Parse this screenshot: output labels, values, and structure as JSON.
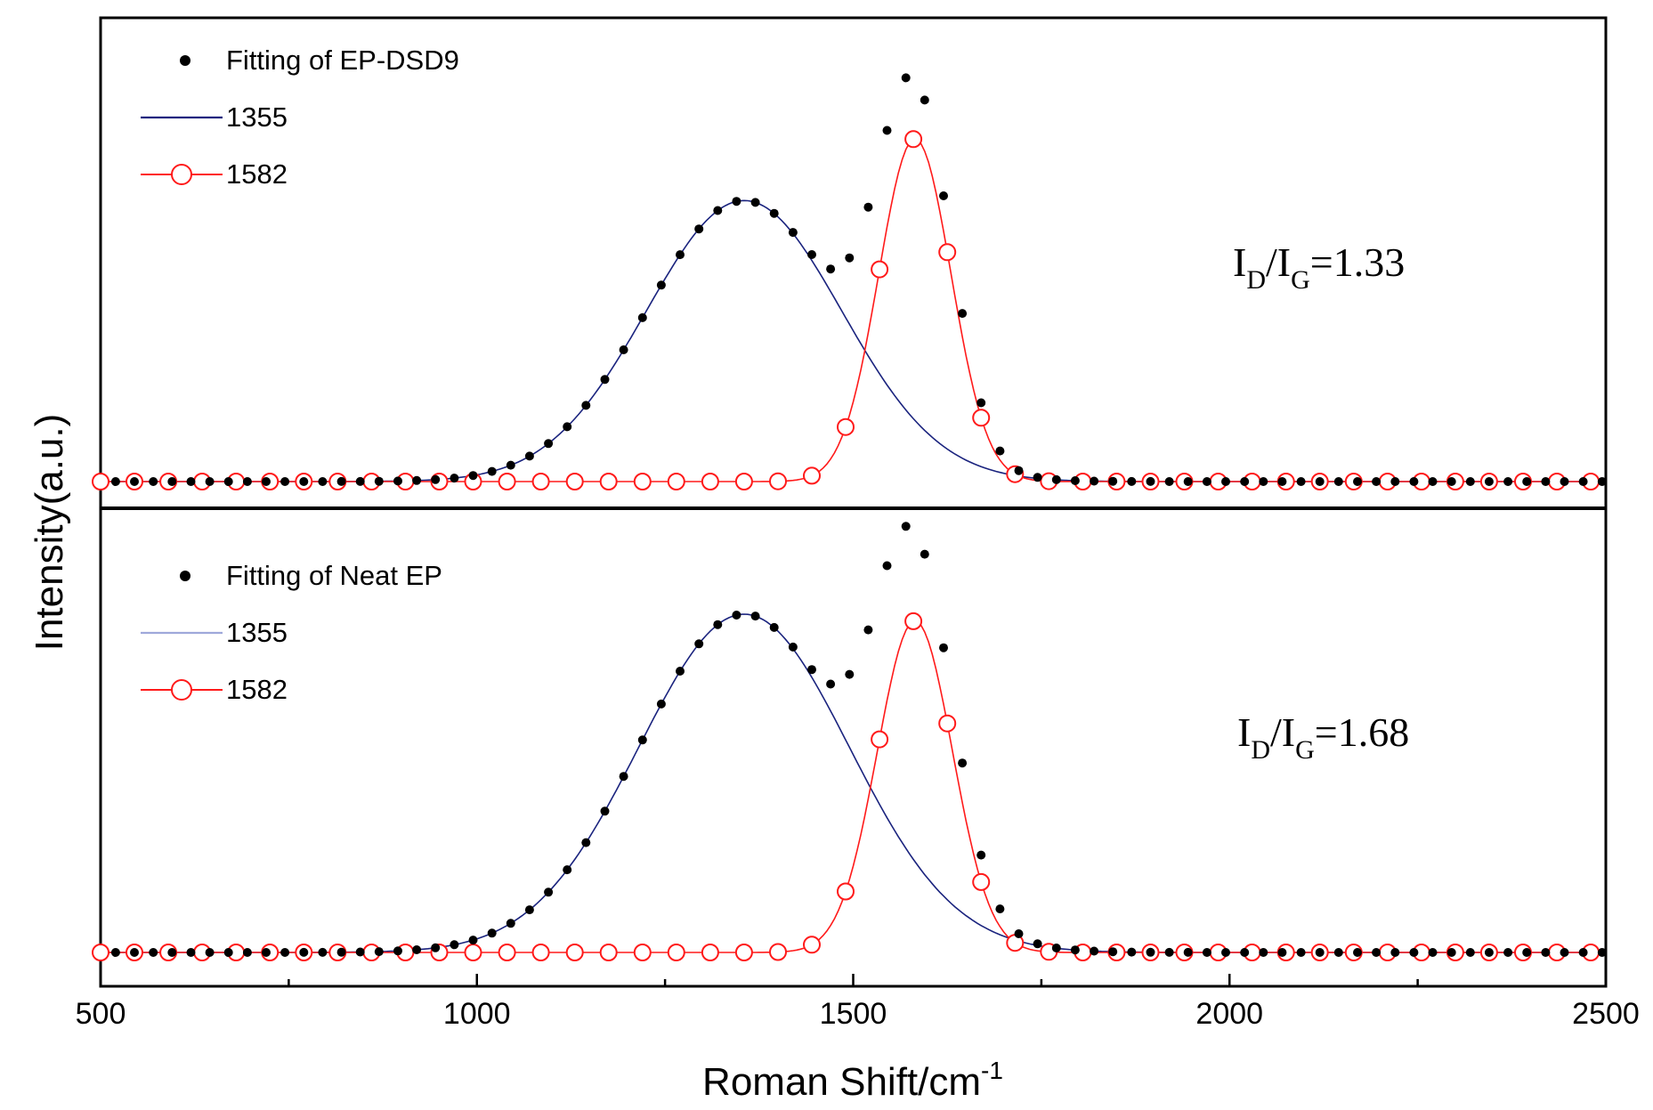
{
  "chart_data": [
    {
      "type": "line",
      "panel": "top",
      "xlim": [
        500,
        2500
      ],
      "ylim": [
        0,
        1.05
      ],
      "legend_placement": "top-left",
      "legend": [
        {
          "label": "Fitting of EP-DSD9",
          "marker": "filled-dot",
          "color": "#000000"
        },
        {
          "label": "1355",
          "marker": "line",
          "color": "#1a237e"
        },
        {
          "label": "1582",
          "marker": "open-circle-line",
          "color": "#ff1a1a"
        }
      ],
      "annotation": {
        "main1": "I",
        "sub1": "D",
        "slash": "/I",
        "sub2": "G",
        "value": "=1.33"
      },
      "series": [
        {
          "name": "1355",
          "kind": "gaussian",
          "center": 1355,
          "sigma": 130,
          "amplitude": 0.82,
          "baseline": 0.0
        },
        {
          "name": "1582",
          "kind": "gaussian",
          "center": 1582,
          "sigma": 48,
          "amplitude": 1.0,
          "baseline": 0.0
        },
        {
          "name": "Fitting of EP-DSD9",
          "kind": "sum",
          "components": [
            "1355",
            "1582"
          ]
        }
      ]
    },
    {
      "type": "line",
      "panel": "bottom",
      "xlim": [
        500,
        2500
      ],
      "ylim": [
        0,
        1.05
      ],
      "legend_placement": "top-left",
      "legend": [
        {
          "label": "Fitting of  Neat EP",
          "marker": "filled-dot",
          "color": "#000000"
        },
        {
          "label": "1355",
          "marker": "line",
          "color": "#9fa8da"
        },
        {
          "label": "1582",
          "marker": "open-circle-line",
          "color": "#ff1a1a"
        }
      ],
      "annotation": {
        "main1": "I",
        "sub1": "D",
        "slash": "/I",
        "sub2": "G",
        "value": "=1.68"
      },
      "series": [
        {
          "name": "1355",
          "kind": "gaussian",
          "center": 1355,
          "sigma": 140,
          "amplitude": 1.0,
          "baseline": 0.0
        },
        {
          "name": "1582",
          "kind": "gaussian",
          "center": 1582,
          "sigma": 50,
          "amplitude": 0.98,
          "baseline": 0.0
        },
        {
          "name": "Fitting of  Neat EP",
          "kind": "sum",
          "components": [
            "1355",
            "1582"
          ]
        }
      ]
    }
  ],
  "axes": {
    "xlabel": "Roman Shift/cm",
    "xlabel_sup": "-1",
    "ylabel": "Intensity(a.u.)",
    "x_ticks": [
      500,
      1000,
      1500,
      2000,
      2500
    ]
  }
}
